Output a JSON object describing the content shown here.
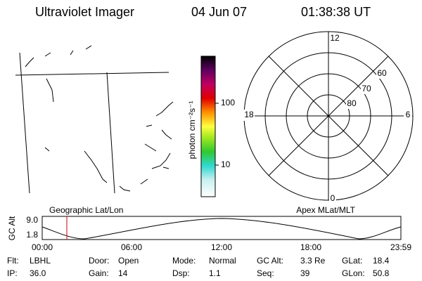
{
  "header": {
    "title": "Ultraviolet Imager",
    "date": "04 Jun 07",
    "time": "01:38:38 UT"
  },
  "colorbar": {
    "label": "photon cm⁻²s⁻¹",
    "ticks": [
      "100",
      "10"
    ]
  },
  "polar_plot": {
    "mlt_labels": [
      "12",
      "6",
      "0",
      "18"
    ],
    "mlat_labels": [
      "60",
      "70",
      "80"
    ]
  },
  "timeline": {
    "left_title": "Geographic Lat/Lon",
    "right_title": "Apex MLat/MLT",
    "y_label": "GC Alt",
    "y_ticks": [
      "9.0",
      "1.8"
    ],
    "x_ticks": [
      "00:00",
      "06:00",
      "12:00",
      "18:00",
      "23:59"
    ]
  },
  "status": [
    [
      {
        "label": "Flt:",
        "value": "LBHL"
      },
      {
        "label": "Door:",
        "value": "Open"
      },
      {
        "label": "Mode:",
        "value": "Normal"
      },
      {
        "label": "GC Alt:",
        "value": "3.3 Re"
      },
      {
        "label": "GLat:",
        "value": "18.4"
      }
    ],
    [
      {
        "label": "IP:",
        "value": "36.0"
      },
      {
        "label": "Gain:",
        "value": "14"
      },
      {
        "label": "Dsp:",
        "value": "1.1"
      },
      {
        "label": "Seq:",
        "value": "39"
      },
      {
        "label": "GLon:",
        "value": "50.8"
      }
    ]
  ]
}
